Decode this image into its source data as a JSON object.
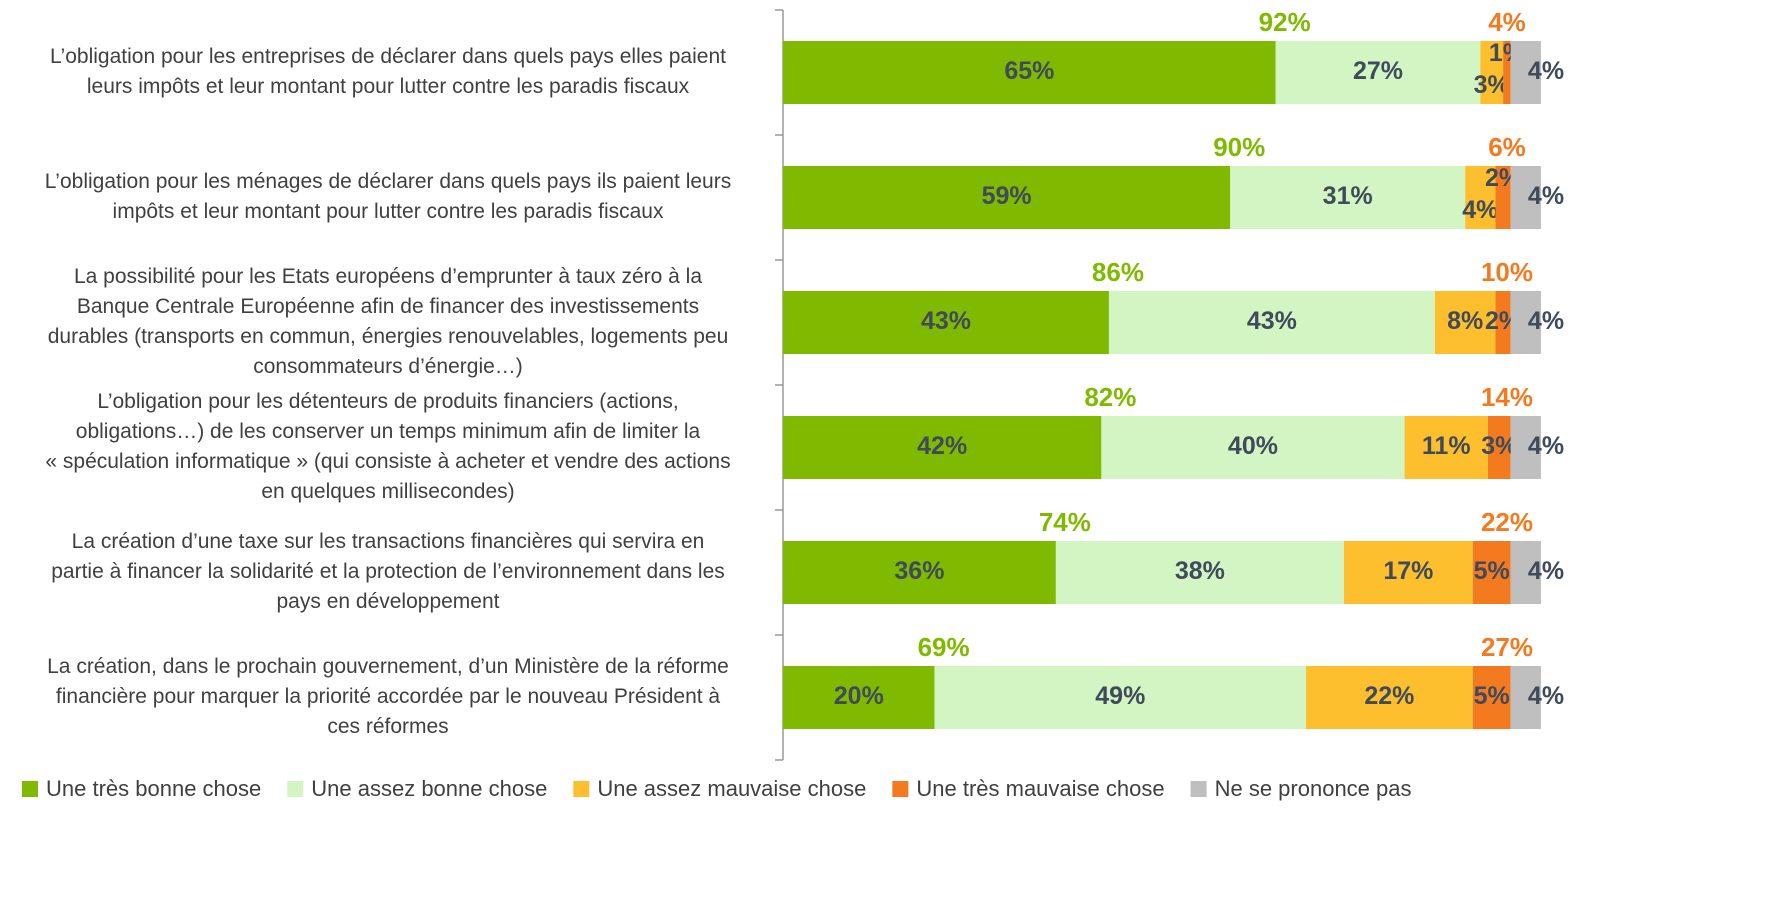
{
  "chart_data": {
    "type": "stacked-barh",
    "categories": [
      [
        "L’obligation pour les entreprises de déclarer dans quels pays elles paient",
        "leurs impôts et leur montant pour lutter contre les paradis fiscaux"
      ],
      [
        "L’obligation pour les ménages de déclarer dans quels pays ils paient leurs",
        "impôts et leur montant pour lutter contre les paradis fiscaux"
      ],
      [
        "La possibilité pour les Etats européens d’emprunter à taux zéro à la",
        "Banque Centrale Européenne afin de financer des investissements",
        "durables (transports en commun, énergies renouvelables, logements peu",
        "consommateurs d’énergie…)"
      ],
      [
        "L’obligation pour les détenteurs de produits financiers (actions,",
        "obligations…) de les conserver un temps minimum afin de limiter la",
        "« spéculation informatique » (qui consiste à acheter et vendre des actions",
        "en quelques millisecondes)"
      ],
      [
        "La création d’une taxe sur les transactions financières qui servira en",
        "partie à financer la solidarité et la protection de l’environnement dans les",
        "pays en développement"
      ],
      [
        "La création, dans le prochain gouvernement, d’un Ministère de la réforme",
        "financière pour marquer la priorité accordée par le nouveau Président à",
        "ces réformes"
      ]
    ],
    "xlim": [
      0,
      100
    ],
    "series": [
      {
        "name": "Une très bonne chose",
        "color": "#7fba00",
        "values": [
          65,
          59,
          43,
          42,
          36,
          20
        ],
        "value_labels": [
          "65%",
          "59%",
          "43%",
          "42%",
          "36%",
          "20%"
        ]
      },
      {
        "name": "Une assez bonne chose",
        "color": "#d3f5c3",
        "values": [
          27,
          31,
          43,
          40,
          38,
          49
        ],
        "value_labels": [
          "27%",
          "31%",
          "43%",
          "40%",
          "38%",
          "49%"
        ]
      },
      {
        "name": "Une assez mauvaise chose",
        "color": "#fdbf2d",
        "values": [
          3,
          4,
          8,
          11,
          17,
          22
        ],
        "value_labels": [
          "3%",
          "4%",
          "8%",
          "11%",
          "17%",
          "22%"
        ]
      },
      {
        "name": "Une très mauvaise chose",
        "color": "#f47a20",
        "values": [
          1,
          2,
          2,
          3,
          5,
          5
        ],
        "value_labels": [
          "1%",
          "2%",
          "2%",
          "3%",
          "5%",
          "5%"
        ]
      },
      {
        "name": "Ne se prononce pas",
        "color": "#bfbfbf",
        "values": [
          4,
          4,
          4,
          4,
          4,
          4
        ],
        "value_labels": [
          "4%",
          "4%",
          "4%",
          "4%",
          "4%",
          "4%"
        ]
      }
    ],
    "totals_good": {
      "color": "#7fba00",
      "values": [
        92,
        90,
        86,
        82,
        74,
        69
      ],
      "value_labels": [
        "92%",
        "90%",
        "86%",
        "82%",
        "74%",
        "69%"
      ]
    },
    "totals_bad": {
      "color": "#f47a20",
      "values": [
        4,
        6,
        10,
        14,
        22,
        27
      ],
      "value_labels": [
        "4%",
        "6%",
        "10%",
        "14%",
        "22%",
        "27%"
      ]
    }
  }
}
